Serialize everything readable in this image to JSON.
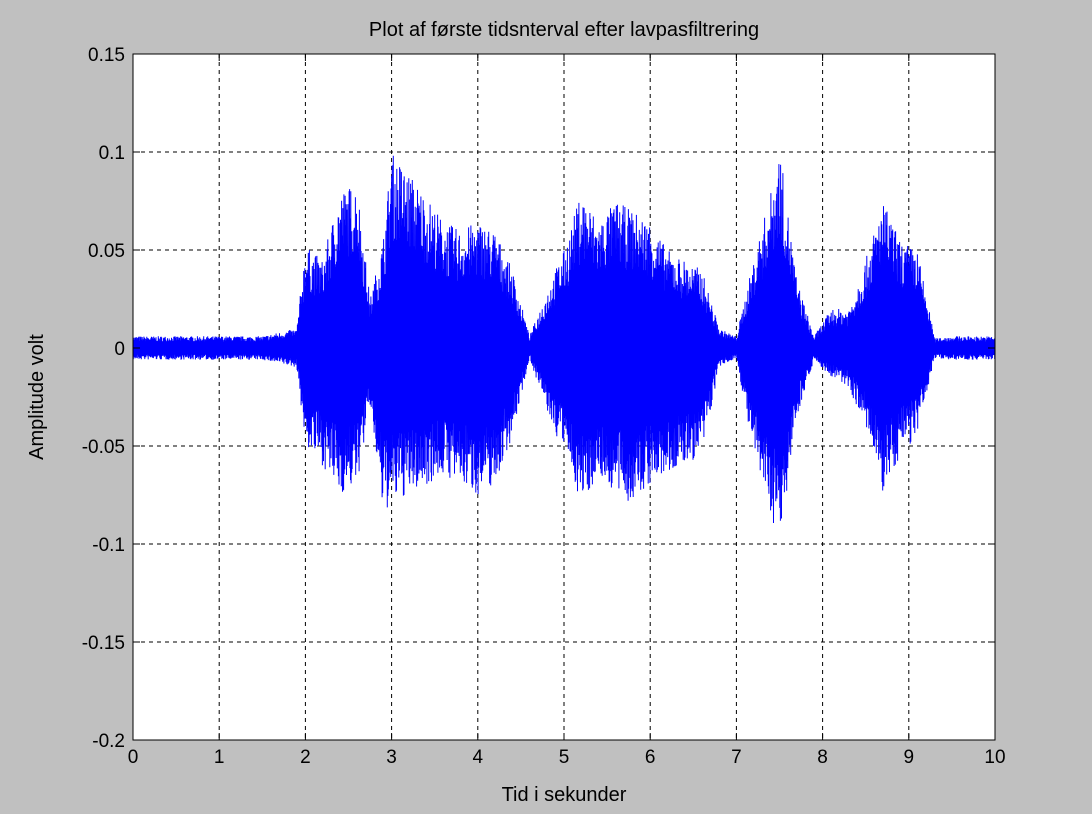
{
  "chart_data": {
    "type": "line",
    "title": "Plot af første tidsnterval efter lavpasfiltrering",
    "xlabel": "Tid i sekunder",
    "ylabel": "Amplitude volt",
    "xlim": [
      0,
      10
    ],
    "ylim": [
      -0.2,
      0.15
    ],
    "xticks": [
      0,
      1,
      2,
      3,
      4,
      5,
      6,
      7,
      8,
      9,
      10
    ],
    "xtick_labels": [
      "0",
      "1",
      "2",
      "3",
      "4",
      "5",
      "6",
      "7",
      "8",
      "9",
      "10"
    ],
    "yticks": [
      -0.2,
      -0.15,
      -0.1,
      -0.05,
      0,
      0.05,
      0.1,
      0.15
    ],
    "ytick_labels": [
      "-0.2",
      "-0.15",
      "-0.1",
      "-0.05",
      "0",
      "0.05",
      "0.1",
      "0.15"
    ],
    "grid": true,
    "series": [
      {
        "color": "#0000ff",
        "x": [
          0.0,
          0.5,
          1.0,
          1.5,
          1.9,
          2.0,
          2.2,
          2.4,
          2.6,
          2.75,
          2.9,
          3.0,
          3.2,
          3.4,
          3.6,
          3.8,
          4.0,
          4.2,
          4.4,
          4.6,
          4.9,
          5.0,
          5.2,
          5.4,
          5.6,
          5.8,
          6.0,
          6.2,
          6.4,
          6.6,
          6.8,
          7.0,
          7.2,
          7.4,
          7.5,
          7.7,
          7.9,
          8.1,
          8.3,
          8.5,
          8.7,
          8.9,
          9.1,
          9.3,
          9.5,
          10.0
        ],
        "max": [
          0.006,
          0.006,
          0.006,
          0.006,
          0.01,
          0.052,
          0.045,
          0.08,
          0.085,
          0.025,
          0.055,
          0.1,
          0.09,
          0.078,
          0.065,
          0.06,
          0.065,
          0.06,
          0.04,
          0.006,
          0.04,
          0.05,
          0.08,
          0.065,
          0.075,
          0.07,
          0.065,
          0.05,
          0.045,
          0.04,
          0.01,
          0.006,
          0.045,
          0.08,
          0.103,
          0.035,
          0.006,
          0.02,
          0.02,
          0.045,
          0.075,
          0.055,
          0.05,
          0.005,
          0.006,
          0.006
        ],
        "min": [
          -0.006,
          -0.006,
          -0.006,
          -0.006,
          -0.01,
          -0.05,
          -0.06,
          -0.075,
          -0.07,
          -0.03,
          -0.085,
          -0.08,
          -0.075,
          -0.07,
          -0.065,
          -0.07,
          -0.075,
          -0.07,
          -0.045,
          -0.005,
          -0.045,
          -0.05,
          -0.08,
          -0.065,
          -0.075,
          -0.08,
          -0.07,
          -0.065,
          -0.06,
          -0.055,
          -0.01,
          -0.005,
          -0.055,
          -0.085,
          -0.1,
          -0.035,
          -0.006,
          -0.015,
          -0.02,
          -0.04,
          -0.075,
          -0.055,
          -0.045,
          -0.005,
          -0.006,
          -0.006
        ]
      }
    ]
  }
}
